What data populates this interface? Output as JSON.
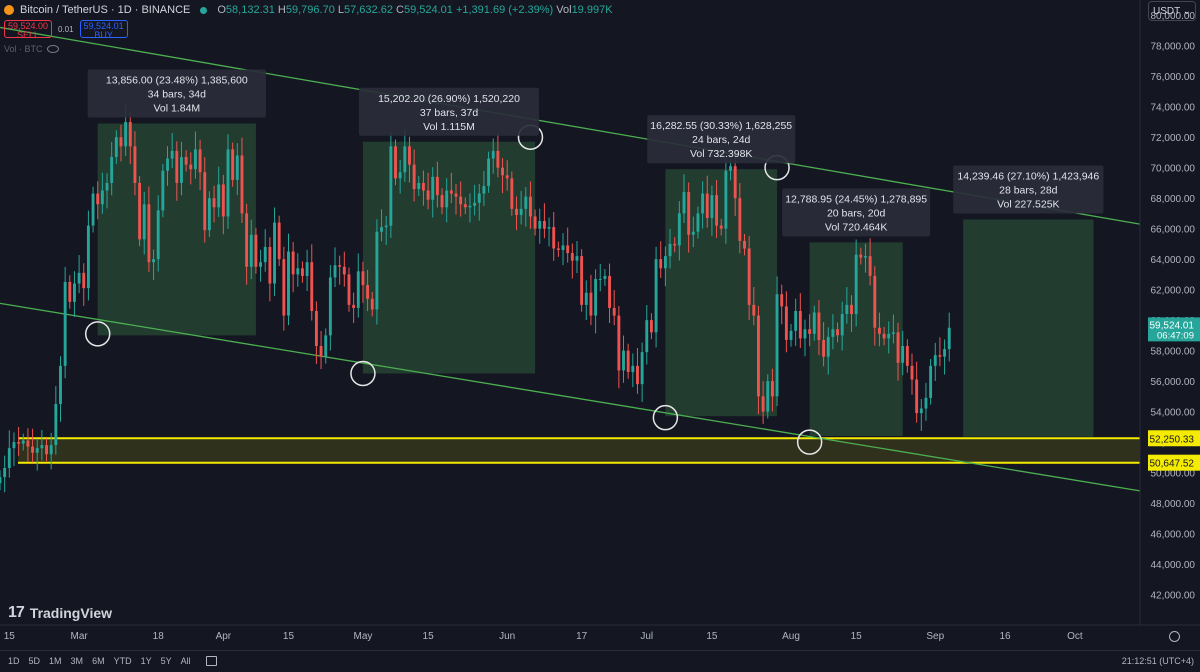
{
  "header": {
    "title": "Bitcoin / TetherUS · 1D · BINANCE",
    "o_label": "O",
    "o": "58,132.31",
    "h_label": "H",
    "h": "59,796.70",
    "l_label": "L",
    "l": "57,632.62",
    "c_label": "C",
    "c": "59,524.01",
    "change": "+1,391.69 (+2.39%)",
    "vol_label": "Vol",
    "vol": "19.997K"
  },
  "trade": {
    "sell_price": "59,524.00",
    "sell_label": "SELL",
    "spread": "0.01",
    "buy_price": "59,524.01",
    "buy_label": "BUY"
  },
  "volume_indicator": "Vol · BTC",
  "currency": "USDT",
  "brand": "TradingView",
  "time_ranges": [
    "1D",
    "5D",
    "1M",
    "3M",
    "6M",
    "YTD",
    "1Y",
    "5Y",
    "All"
  ],
  "clock": "21:12:51 (UTC+4)",
  "colors": {
    "up": "#26a69a",
    "down": "#ef5350",
    "channel": "#4caf50",
    "zone": "#f5eb00",
    "box": "#2e5c3c",
    "last_price": "#26a69a"
  },
  "chart_data": {
    "type": "candlestick",
    "title": "Bitcoin / TetherUS · 1D · BINANCE",
    "y_axis": {
      "min": 40000,
      "max": 81000,
      "ticks": [
        42000,
        44000,
        46000,
        48000,
        50000,
        52000,
        54000,
        56000,
        58000,
        60000,
        62000,
        64000,
        66000,
        68000,
        70000,
        72000,
        74000,
        76000,
        78000,
        80000
      ],
      "format": "0,000.00"
    },
    "x_axis": {
      "range": [
        "2024-02-13",
        "2024-10-15"
      ],
      "ticks": [
        {
          "date": "2024-02-15",
          "label": "15"
        },
        {
          "date": "2024-03-01",
          "label": "Mar"
        },
        {
          "date": "2024-03-18",
          "label": "18"
        },
        {
          "date": "2024-04-01",
          "label": "Apr"
        },
        {
          "date": "2024-04-15",
          "label": "15"
        },
        {
          "date": "2024-05-01",
          "label": "May"
        },
        {
          "date": "2024-05-15",
          "label": "15"
        },
        {
          "date": "2024-06-01",
          "label": "Jun"
        },
        {
          "date": "2024-06-17",
          "label": "17"
        },
        {
          "date": "2024-07-01",
          "label": "Jul"
        },
        {
          "date": "2024-07-15",
          "label": "15"
        },
        {
          "date": "2024-08-01",
          "label": "Aug"
        },
        {
          "date": "2024-08-15",
          "label": "15"
        },
        {
          "date": "2024-09-01",
          "label": "Sep"
        },
        {
          "date": "2024-09-16",
          "label": "16"
        },
        {
          "date": "2024-10-01",
          "label": "Oct"
        }
      ]
    },
    "start_date": "2024-02-13",
    "series_close": [
      [
        49700,
        50300,
        51600,
        52000,
        51900,
        52100,
        51700,
        51300,
        51600,
        51800,
        51200,
        51800,
        54500,
        57000,
        62500,
        61200,
        62400,
        63100,
        62100,
        66200,
        68300,
        67600,
        68500,
        69000,
        70700,
        72000,
        71400,
        73000,
        71400,
        69000,
        65300,
        67600,
        63800,
        64000,
        67200,
        69800,
        70600,
        71100,
        69000,
        70700,
        70200,
        69900,
        71200,
        69700,
        65900,
        68000,
        67400,
        68900,
        66800,
        71200,
        69200,
        70800,
        67000,
        63500,
        65600,
        63500,
        63800,
        64800,
        62400,
        66400,
        64000,
        60300,
        64500,
        63000,
        63400,
        62900,
        63800,
        60600,
        58300,
        57600,
        59000,
        62800,
        63600,
        63500,
        63000,
        61000,
        60800,
        63200,
        62300,
        61400,
        60700,
        65800,
        66100,
        66200,
        71400,
        69300,
        69700,
        71400,
        70200,
        68600,
        69000,
        68500,
        67900,
        69400,
        68200,
        67400,
        68500,
        68300,
        68100,
        67600,
        67400,
        67500,
        67700,
        68300,
        68800,
        70600,
        71100,
        70000,
        69500,
        69300,
        67300,
        66900,
        67300,
        68100,
        66800,
        66000,
        66500,
        66000,
        66100,
        64700,
        64600,
        64900,
        64400,
        63900,
        64200,
        61000,
        61800,
        60300,
        62700,
        62700,
        62900,
        60800,
        60300,
        56700,
        58000,
        56600,
        57000,
        55800,
        57900,
        60000,
        59200,
        64000,
        63400,
        64200,
        65000,
        64900,
        67000,
        68400,
        65600,
        65800,
        67000,
        68300,
        66700,
        68200,
        66200,
        66000,
        69800,
        70100,
        68000,
        65200,
        64700,
        61000,
        60300,
        55000,
        54000,
        56000,
        55000,
        61700,
        60900,
        58700,
        59300,
        60600,
        58800,
        59400,
        59100,
        60500,
        58700,
        57600,
        58900,
        59400,
        59000,
        60400,
        61000,
        60400,
        64300,
        64100,
        64200,
        62900,
        59500,
        59100,
        58800,
        59100,
        59200,
        57200,
        58300,
        57000,
        56100,
        53900,
        54200,
        54900,
        57000,
        57700,
        57600,
        58100,
        59500
      ]
    ],
    "last_price": 59524.01,
    "last_price_label": "59,524.01",
    "countdown": "06:47:09",
    "horizontal_levels": [
      {
        "value": 52250.33,
        "label": "52,250.33"
      },
      {
        "value": 50647.52,
        "label": "50,647.52"
      }
    ],
    "channel_lines": [
      {
        "name": "upper",
        "points": [
          [
            "2024-02-13",
            79200
          ],
          [
            "2024-10-15",
            66300
          ]
        ]
      },
      {
        "name": "lower",
        "points": [
          [
            "2024-02-13",
            61100
          ],
          [
            "2024-10-15",
            48800
          ]
        ]
      }
    ],
    "touch_points": [
      {
        "date": "2024-03-05",
        "price": 59100
      },
      {
        "date": "2024-05-01",
        "price": 56500
      },
      {
        "date": "2024-06-06",
        "price": 72000
      },
      {
        "date": "2024-07-05",
        "price": 53600
      },
      {
        "date": "2024-07-29",
        "price": 70000
      },
      {
        "date": "2024-08-05",
        "price": 52000
      }
    ],
    "measurements": [
      {
        "start": "2024-03-05",
        "end": "2024-04-08",
        "low": 59000,
        "high": 72900,
        "line1": "13,856.00 (23.48%) 1,385,600",
        "line2": "34 bars, 34d",
        "line3": "Vol 1.84M"
      },
      {
        "start": "2024-05-01",
        "end": "2024-06-07",
        "low": 56500,
        "high": 71700,
        "line1": "15,202.20 (26.90%) 1,520,220",
        "line2": "37 bars, 37d",
        "line3": "Vol 1.115M"
      },
      {
        "start": "2024-07-05",
        "end": "2024-07-29",
        "low": 53700,
        "high": 69900,
        "line1": "16,282.55 (30.33%) 1,628,255",
        "line2": "24 bars, 24d",
        "line3": "Vol 732.398K"
      },
      {
        "start": "2024-08-05",
        "end": "2024-08-25",
        "low": 52400,
        "high": 65100,
        "line1": "12,788.95 (24.45%) 1,278,895",
        "line2": "20 bars, 20d",
        "line3": "Vol 720.464K"
      },
      {
        "start": "2024-09-07",
        "end": "2024-10-05",
        "low": 52350,
        "high": 66600,
        "line1": "14,239.46 (27.10%) 1,423,946",
        "line2": "28 bars, 28d",
        "line3": "Vol 227.525K"
      }
    ]
  }
}
